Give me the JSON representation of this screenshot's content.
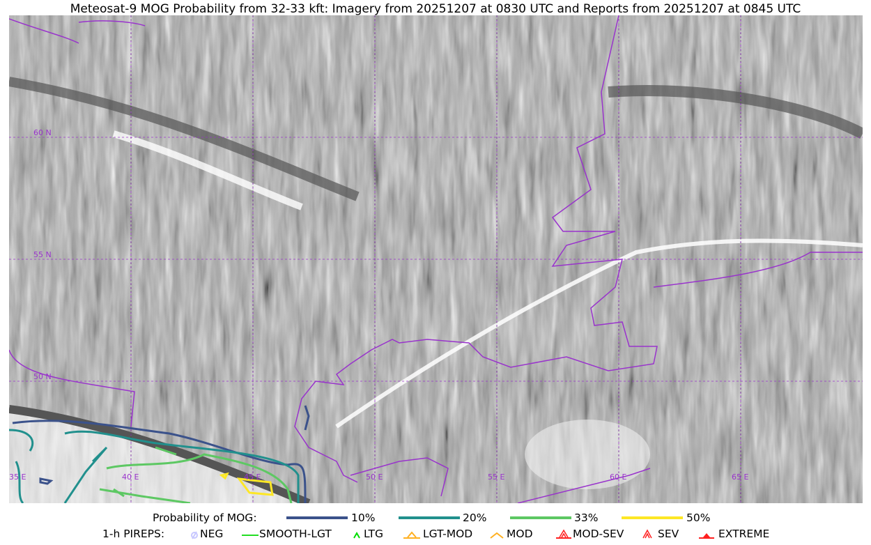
{
  "title": "Meteosat-9 MOG Probability from 32-33 kft: Imagery from 20251207 at 0830 UTC and Reports from 20251207 at 0845 UTC",
  "map": {
    "lon_labels": [
      "35 E",
      "40 E",
      "45 E",
      "50 E",
      "55 E",
      "60 E",
      "65 E"
    ],
    "lat_labels": [
      "60 N",
      "55 N",
      "50 N"
    ],
    "colors": {
      "border": "#9933cc",
      "grid": "#9933cc"
    }
  },
  "legend": {
    "prob_title": "Probability of MOG:",
    "prob": [
      {
        "label": "10%",
        "color": "#3b528b"
      },
      {
        "label": "20%",
        "color": "#21908d"
      },
      {
        "label": "33%",
        "color": "#5dc863"
      },
      {
        "label": "50%",
        "color": "#fde725"
      }
    ],
    "pirep_title": "1-h PIREPS:",
    "pireps": [
      {
        "label": "NEG",
        "color": "#c8c8ff",
        "icon": "neg-icon"
      },
      {
        "label": "SMOOTH-LGT",
        "color": "#22dd22",
        "icon": "line-icon"
      },
      {
        "label": "LTG",
        "color": "#00dd00",
        "icon": "caret-icon"
      },
      {
        "label": "LGT-MOD",
        "color": "#ffb020",
        "icon": "caret-bar-icon"
      },
      {
        "label": "MOD",
        "color": "#ffb020",
        "icon": "caret-icon"
      },
      {
        "label": "MOD-SEV",
        "color": "#ff2020",
        "icon": "double-caret-bar-icon"
      },
      {
        "label": "SEV",
        "color": "#ff2020",
        "icon": "double-caret-icon"
      },
      {
        "label": "EXTREME",
        "color": "#ff2020",
        "icon": "filled-triangle-icon"
      }
    ]
  }
}
